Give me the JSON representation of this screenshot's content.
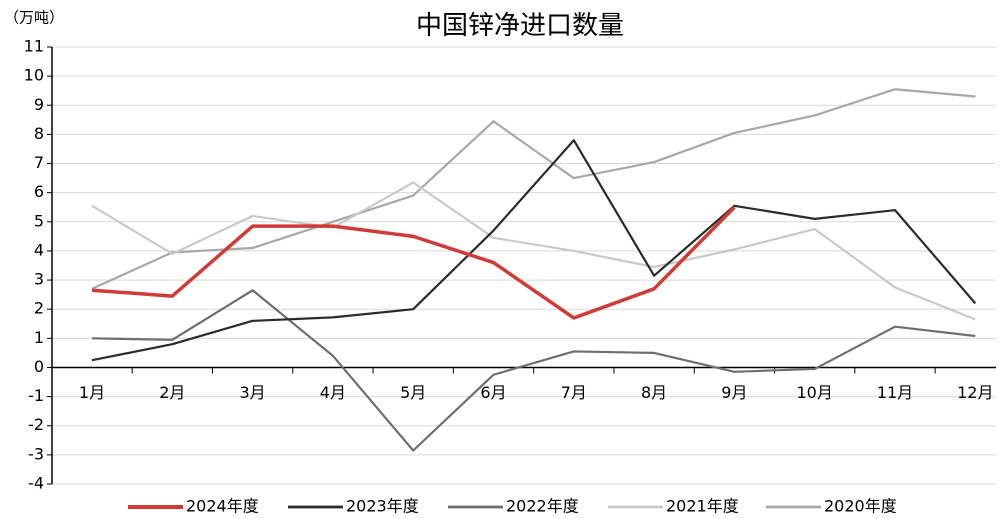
{
  "chart_data": {
    "type": "line",
    "title": "中国锌净进口数量",
    "y_unit": "（万吨）",
    "categories": [
      "1月",
      "2月",
      "3月",
      "4月",
      "5月",
      "6月",
      "7月",
      "8月",
      "9月",
      "10月",
      "11月",
      "12月"
    ],
    "series": [
      {
        "name": "2024年度",
        "color": "#d23a36",
        "width": 3.5,
        "values": [
          2.65,
          2.45,
          4.85,
          4.85,
          4.5,
          3.6,
          1.7,
          2.7,
          5.5,
          null,
          null,
          null
        ]
      },
      {
        "name": "2023年度",
        "color": "#2b2b2b",
        "width": 2.2,
        "values": [
          0.25,
          0.8,
          1.6,
          1.72,
          2.0,
          4.7,
          7.8,
          3.15,
          5.55,
          5.1,
          5.4,
          2.2
        ]
      },
      {
        "name": "2022年度",
        "color": "#6e6e6e",
        "width": 2.2,
        "values": [
          1.0,
          0.95,
          2.65,
          0.4,
          -2.85,
          -0.25,
          0.55,
          0.5,
          -0.15,
          -0.05,
          1.4,
          1.08
        ]
      },
      {
        "name": "2021年度",
        "color": "#c9c9c9",
        "width": 2.2,
        "values": [
          5.55,
          3.9,
          5.2,
          4.8,
          6.35,
          4.45,
          4.0,
          3.45,
          4.05,
          4.75,
          2.75,
          1.65
        ]
      },
      {
        "name": "2020年度",
        "color": "#a8a8a8",
        "width": 2.2,
        "values": [
          2.7,
          3.95,
          4.1,
          5.0,
          5.9,
          8.45,
          6.5,
          7.05,
          8.05,
          8.65,
          9.55,
          9.3
        ]
      }
    ],
    "ylim": [
      -4,
      11
    ],
    "yticks": [
      -4,
      -3,
      -2,
      -1,
      0,
      1,
      2,
      3,
      4,
      5,
      6,
      7,
      8,
      9,
      10,
      11
    ],
    "grid": true
  }
}
